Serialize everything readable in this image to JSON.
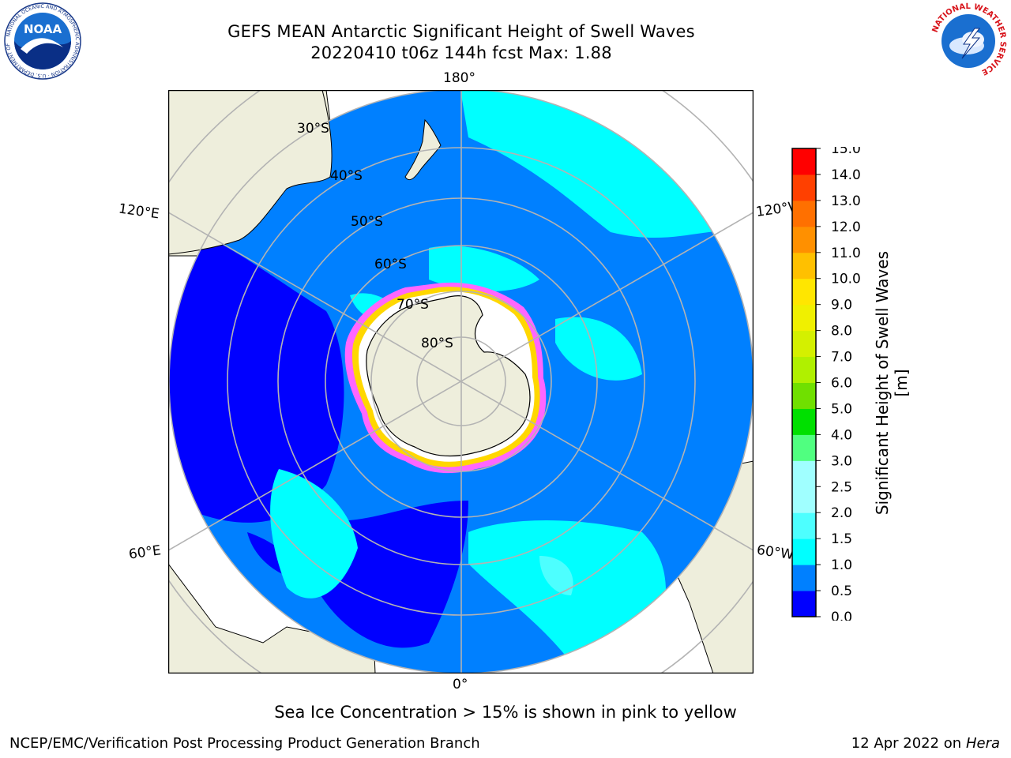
{
  "header": {
    "title_line1": "GEFS MEAN Antarctic Significant Height of Swell Waves",
    "title_line2": "20220410 t06z 144h fcst   Max: 1.88"
  },
  "logos": {
    "left": {
      "name": "NOAA",
      "text": "NOAA",
      "ring_text": "NATIONAL OCEANIC AND ATMOSPHERIC ADMINISTRATION · U.S. DEPARTMENT OF COMMERCE"
    },
    "right": {
      "name": "National Weather Service",
      "ring_text": "NATIONAL WEATHER SERVICE"
    }
  },
  "map": {
    "projection": "south-polar-stereographic",
    "longitude_labels": {
      "top": "180°",
      "bottom": "0°",
      "upper_left": "120°E",
      "upper_right": "120°W",
      "lower_left": "60°E",
      "lower_right": "60°W"
    },
    "latitude_labels": [
      "30°S",
      "40°S",
      "50°S",
      "60°S",
      "70°S",
      "80°S"
    ],
    "colors": {
      "land": "#EEEEDC",
      "coast": "#000000",
      "grid": "#B3B3B3",
      "ice_edge_pink": "#FF66FF",
      "ice_edge_yellow": "#FFD700"
    }
  },
  "colorbar": {
    "title": "Significant Height of Swell Waves [m]",
    "ticks": [
      "0.0",
      "0.5",
      "1.0",
      "1.5",
      "2.0",
      "2.5",
      "3.0",
      "4.0",
      "5.0",
      "6.0",
      "7.0",
      "8.0",
      "9.0",
      "10.0",
      "11.0",
      "12.0",
      "13.0",
      "14.0",
      "15.0"
    ],
    "colors": [
      "#0000FF",
      "#0080FF",
      "#00FFFF",
      "#4DFFFF",
      "#A0FFFF",
      "#A0FFFF",
      "#50FF80",
      "#00E000",
      "#70E000",
      "#B0F000",
      "#D4F000",
      "#F0F000",
      "#FFE600",
      "#FFC000",
      "#FF9000",
      "#FF7000",
      "#FF4000",
      "#FF0000"
    ]
  },
  "caption": "Sea Ice Concentration > 15% is shown in pink to yellow",
  "footer": {
    "credit": "NCEP/EMC/Verification Post Processing Product Generation Branch",
    "date": "12 Apr 2022 on",
    "host": "Hera"
  }
}
